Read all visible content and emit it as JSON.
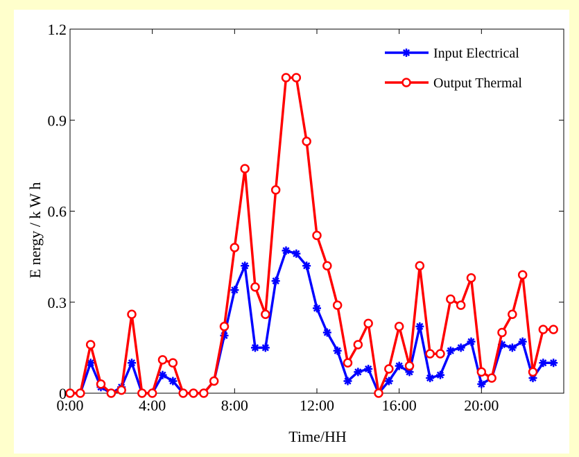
{
  "chart_data": {
    "type": "line",
    "xlabel": "Time/HH",
    "ylabel": "E nergy / k W h",
    "ylim": [
      0,
      1.2
    ],
    "xlim": [
      0,
      24
    ],
    "x_ticks": [
      0,
      4,
      8,
      12,
      16,
      20
    ],
    "x_tick_labels": [
      "0:00",
      "4:00",
      "8:00",
      "12:00",
      "16:00",
      "20:00"
    ],
    "y_ticks": [
      0,
      0.3,
      0.6,
      0.9,
      1.2
    ],
    "y_tick_labels": [
      "0",
      "0.3",
      "0.6",
      "0.9",
      "1.2"
    ],
    "legend_position": "top-right",
    "grid": false,
    "x": [
      0,
      0.5,
      1,
      1.5,
      2,
      2.5,
      3,
      3.5,
      4,
      4.5,
      5,
      5.5,
      6,
      6.5,
      7,
      7.5,
      8,
      8.5,
      9,
      9.5,
      10,
      10.5,
      11,
      11.5,
      12,
      12.5,
      13,
      13.5,
      14,
      14.5,
      15,
      15.5,
      16,
      16.5,
      17,
      17.5,
      18,
      18.5,
      19,
      19.5,
      20,
      20.5,
      21,
      21.5,
      22,
      22.5,
      23,
      23.5
    ],
    "series": [
      {
        "name": "Input Electrical",
        "color": "#0000ff",
        "marker": "asterisk",
        "values": [
          0,
          0,
          0.1,
          0.02,
          0,
          0.02,
          0.1,
          0,
          0,
          0.06,
          0.04,
          0,
          0,
          0,
          0.04,
          0.19,
          0.34,
          0.42,
          0.15,
          0.15,
          0.37,
          0.47,
          0.46,
          0.42,
          0.28,
          0.2,
          0.14,
          0.04,
          0.07,
          0.08,
          0,
          0.04,
          0.09,
          0.07,
          0.22,
          0.05,
          0.06,
          0.14,
          0.15,
          0.17,
          0.03,
          0.05,
          0.16,
          0.15,
          0.17,
          0.05,
          0.1,
          0.1
        ]
      },
      {
        "name": "Output Thermal",
        "color": "#ff0000",
        "marker": "circle",
        "values": [
          0,
          0,
          0.16,
          0.03,
          0,
          0.01,
          0.26,
          0,
          0,
          0.11,
          0.1,
          0,
          0,
          0,
          0.04,
          0.22,
          0.48,
          0.74,
          0.35,
          0.26,
          0.67,
          1.04,
          1.04,
          0.83,
          0.52,
          0.42,
          0.29,
          0.1,
          0.16,
          0.23,
          0,
          0.08,
          0.22,
          0.09,
          0.42,
          0.13,
          0.13,
          0.31,
          0.29,
          0.38,
          0.07,
          0.05,
          0.2,
          0.26,
          0.39,
          0.07,
          0.21,
          0.21
        ]
      }
    ]
  }
}
